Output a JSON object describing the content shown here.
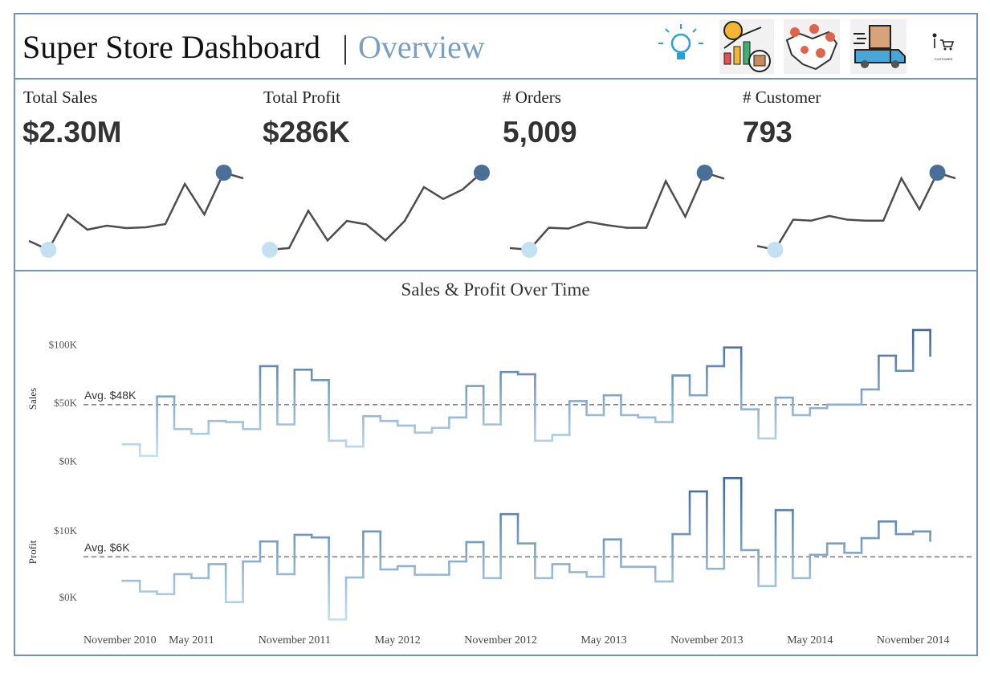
{
  "header": {
    "title": "Super Store Dashboard",
    "separator": "|",
    "subtitle": "Overview",
    "icon_caption": "CUSTOMER"
  },
  "kpis": [
    {
      "label": "Total Sales",
      "value": "$2.30M"
    },
    {
      "label": "Total Profit",
      "value": "$286K"
    },
    {
      "label": "# Orders",
      "value": "5,009"
    },
    {
      "label": "# Customer",
      "value": "793"
    }
  ],
  "chart_data": [
    {
      "type": "sparkline",
      "values": [
        30,
        19,
        63,
        44,
        49,
        46,
        47,
        51,
        101,
        63,
        115,
        108
      ],
      "color": "#4d4d4d",
      "min_color": "#c4e1f1",
      "max_color": "#4a6f99"
    },
    {
      "type": "sparkline",
      "values": [
        23,
        25,
        69,
        34,
        57,
        53,
        34,
        57,
        97,
        83,
        94,
        114
      ],
      "color": "#4d4d4d",
      "min_color": "#c4e1f1",
      "max_color": "#4a6f99"
    },
    {
      "type": "sparkline",
      "values": [
        26,
        24,
        50,
        49,
        57,
        53,
        50,
        50,
        105,
        63,
        115,
        108
      ],
      "color": "#4d4d4d",
      "min_color": "#c4e1f1",
      "max_color": "#4a6f99"
    },
    {
      "type": "sparkline",
      "values": [
        36,
        32,
        64,
        63,
        68,
        64,
        63,
        63,
        108,
        75,
        114,
        108
      ],
      "color": "#4d4d4d",
      "min_color": "#c4e1f1",
      "max_color": "#4a6f99"
    },
    {
      "type": "step",
      "title": "Sales & Profit Over Time",
      "x": [
        "2011-01",
        "2011-02",
        "2011-03",
        "2011-04",
        "2011-05",
        "2011-06",
        "2011-07",
        "2011-08",
        "2011-09",
        "2011-10",
        "2011-11",
        "2011-12",
        "2012-01",
        "2012-02",
        "2012-03",
        "2012-04",
        "2012-05",
        "2012-06",
        "2012-07",
        "2012-08",
        "2012-09",
        "2012-10",
        "2012-11",
        "2012-12",
        "2013-01",
        "2013-02",
        "2013-03",
        "2013-04",
        "2013-05",
        "2013-06",
        "2013-07",
        "2013-08",
        "2013-09",
        "2013-10",
        "2013-11",
        "2013-12",
        "2014-01",
        "2014-02",
        "2014-03",
        "2014-04",
        "2014-05",
        "2014-06",
        "2014-07",
        "2014-08",
        "2014-09",
        "2014-10",
        "2014-11",
        "2014-12"
      ],
      "xlim": [
        "2010-11",
        "2015-01"
      ],
      "xticks": [
        {
          "value": "2010-11",
          "label": "November 2010"
        },
        {
          "value": "2011-05",
          "label": "May 2011"
        },
        {
          "value": "2011-11",
          "label": "November 2011"
        },
        {
          "value": "2012-05",
          "label": "May 2012"
        },
        {
          "value": "2012-11",
          "label": "November 2012"
        },
        {
          "value": "2013-05",
          "label": "May 2013"
        },
        {
          "value": "2013-11",
          "label": "November 2013"
        },
        {
          "value": "2014-05",
          "label": "May 2014"
        },
        {
          "value": "2014-11",
          "label": "November 2014"
        }
      ],
      "color_range": [
        "#c2e0ee",
        "#3c679a"
      ],
      "panels": [
        {
          "ylabel": "Sales",
          "values": [
            14,
            4,
            55,
            27,
            23,
            34,
            33,
            27,
            81,
            31,
            78,
            69,
            17,
            12,
            38,
            34,
            30,
            24,
            28,
            37,
            64,
            31,
            76,
            74,
            17,
            22,
            51,
            39,
            56,
            39,
            37,
            33,
            73,
            56,
            81,
            97,
            44,
            19,
            54,
            39,
            45,
            48,
            48,
            61,
            90,
            77,
            112,
            90
          ],
          "ylim": [
            -10,
            123
          ],
          "yticks": [
            {
              "value": 0,
              "label": "$0K"
            },
            {
              "value": 50,
              "label": "$50K"
            },
            {
              "value": 100,
              "label": "$100K"
            }
          ],
          "average": {
            "value": 48,
            "label": "Avg. $48K"
          }
        },
        {
          "ylabel": "Profit",
          "values": [
            2.4,
            0.8,
            0.4,
            3.4,
            2.8,
            4.9,
            -0.8,
            5.3,
            8.3,
            3.4,
            9.3,
            8.9,
            -3.4,
            2.9,
            9.8,
            4.1,
            4.6,
            3.3,
            3.3,
            5.3,
            8.2,
            2.8,
            12.4,
            8.0,
            2.8,
            4.9,
            3.7,
            3.0,
            8.6,
            4.5,
            4.5,
            2.3,
            9.4,
            15.8,
            4.2,
            17.8,
            7.0,
            1.6,
            13.0,
            2.8,
            6.3,
            8.0,
            6.6,
            8.8,
            11.3,
            9.4,
            9.8,
            8.4
          ],
          "ylim": [
            -4.8,
            18.2
          ],
          "yticks": [
            {
              "value": 0,
              "label": "$0K"
            },
            {
              "value": 10,
              "label": "$10K"
            }
          ],
          "average": {
            "value": 6,
            "label": "Avg. $6K"
          }
        }
      ]
    }
  ]
}
